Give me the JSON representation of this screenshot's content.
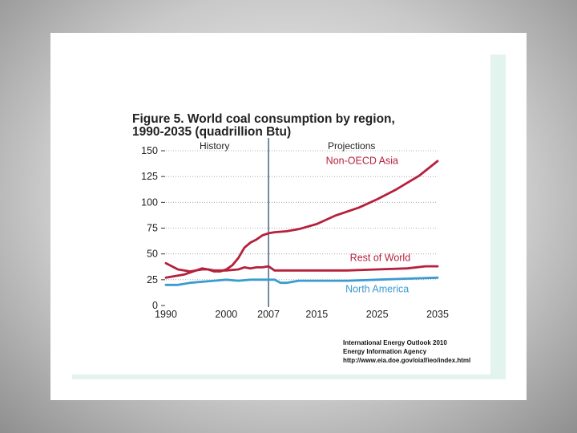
{
  "chart_data": {
    "type": "line",
    "title_lines": [
      "Figure 5. World coal consumption by region,",
      "1990-2035 (quadrillion Btu)"
    ],
    "ylim": [
      0,
      150
    ],
    "y_ticks": [
      0,
      25,
      50,
      75,
      100,
      125,
      150
    ],
    "xlim": [
      1990,
      2035
    ],
    "x_ticks": [
      1990,
      2000,
      2007,
      2015,
      2025,
      2035
    ],
    "divider_year": 2007,
    "section_labels": {
      "history": "History",
      "projections": "Projections"
    },
    "series": [
      {
        "name": "Non-OECD Asia",
        "color": "#b5203c",
        "x": [
          1990,
          1993,
          1995,
          1996,
          1997,
          1998,
          1999,
          2000,
          2001,
          2002,
          2003,
          2004,
          2005,
          2006,
          2007,
          2008,
          2010,
          2012,
          2015,
          2018,
          2020,
          2022,
          2025,
          2028,
          2030,
          2032,
          2035
        ],
        "y": [
          27,
          30,
          34,
          35,
          35,
          33,
          33,
          35,
          39,
          46,
          56,
          61,
          64,
          68,
          70,
          71,
          72,
          74,
          79,
          87,
          91,
          95,
          103,
          112,
          119,
          126,
          140
        ]
      },
      {
        "name": "Rest of World",
        "color": "#b5203c",
        "x": [
          1990,
          1991,
          1992,
          1993,
          1994,
          1995,
          1996,
          1997,
          1998,
          1999,
          2000,
          2002,
          2003,
          2004,
          2005,
          2006,
          2007,
          2008,
          2010,
          2015,
          2020,
          2025,
          2030,
          2033,
          2035
        ],
        "y": [
          41,
          38,
          35,
          34,
          33,
          34,
          36,
          35,
          34,
          34,
          34,
          35,
          37,
          36,
          37,
          37,
          38,
          34,
          34,
          34,
          34,
          35,
          36,
          38,
          38
        ]
      },
      {
        "name": "North America",
        "color": "#3b9bd1",
        "x": [
          1990,
          1992,
          1994,
          1996,
          1998,
          2000,
          2002,
          2004,
          2006,
          2007,
          2008,
          2009,
          2010,
          2012,
          2015,
          2020,
          2025,
          2030,
          2035
        ],
        "y": [
          20,
          20,
          22,
          23,
          24,
          25,
          24,
          25,
          25,
          25,
          25,
          22,
          22,
          24,
          24,
          24,
          25,
          26,
          27
        ]
      }
    ],
    "source_lines": [
      "International Energy Outlook 2010",
      "Energy Information Agency",
      "http://www.eia.doe.gov/oiaf/ieo/index.html"
    ]
  }
}
